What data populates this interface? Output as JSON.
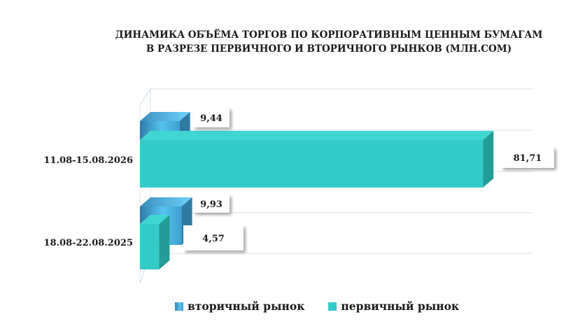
{
  "chart_data": {
    "type": "bar",
    "orientation": "horizontal",
    "title_lines": [
      "ДИНАМИКА ОБЪЁМА ТОРГОВ ПО КОРПОРАТИВНЫМ ЦЕННЫМ БУМАГАМ",
      "В РАЗРЕЗЕ ПЕРВИЧНОГО И ВТОРИЧНОГО РЫНКОВ  (МЛН.СОМ)"
    ],
    "categories": [
      "11.08-15.08.2026",
      "18.08-22.08.2025"
    ],
    "series": [
      {
        "name": "вторичный рынок",
        "values": [
          9.44,
          9.93
        ],
        "labels": [
          "9,44",
          "9,93"
        ],
        "color": "#4fb9e8"
      },
      {
        "name": "первичный рынок",
        "values": [
          81.71,
          4.57
        ],
        "labels": [
          "81,71",
          "4,57"
        ],
        "color": "#33cbc8"
      }
    ],
    "grid": true,
    "legend_position": "bottom",
    "style": "3d"
  }
}
